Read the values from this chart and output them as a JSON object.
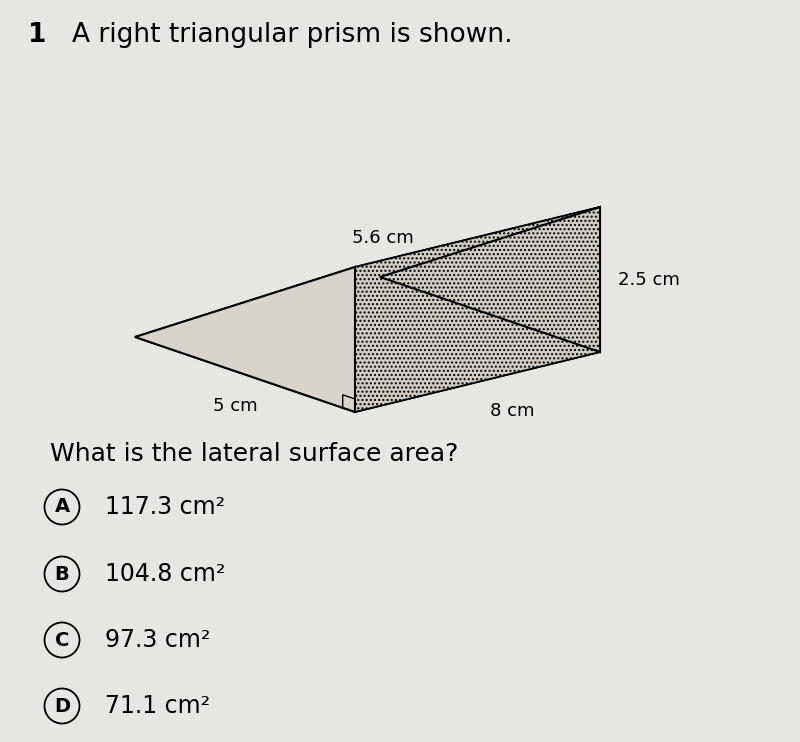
{
  "background_color": "#e8e6e2",
  "title_number": "1",
  "title_text": "A right triangular prism is shown.",
  "question_text": "What is the lateral surface area?",
  "choices": [
    {
      "label": "A",
      "text": "117.3 cm²"
    },
    {
      "label": "B",
      "text": "104.8 cm²"
    },
    {
      "label": "C",
      "text": "97.3 cm²"
    },
    {
      "label": "D",
      "text": "71.1 cm²"
    }
  ],
  "dim_56": "5.6 cm",
  "dim_25": "2.5 cm",
  "dim_8": "8 cm",
  "dim_5": "5 cm",
  "title_fontsize": 19,
  "question_fontsize": 18,
  "choice_fontsize": 17,
  "dim_fontsize": 13,
  "prism_hatch": "...."
}
